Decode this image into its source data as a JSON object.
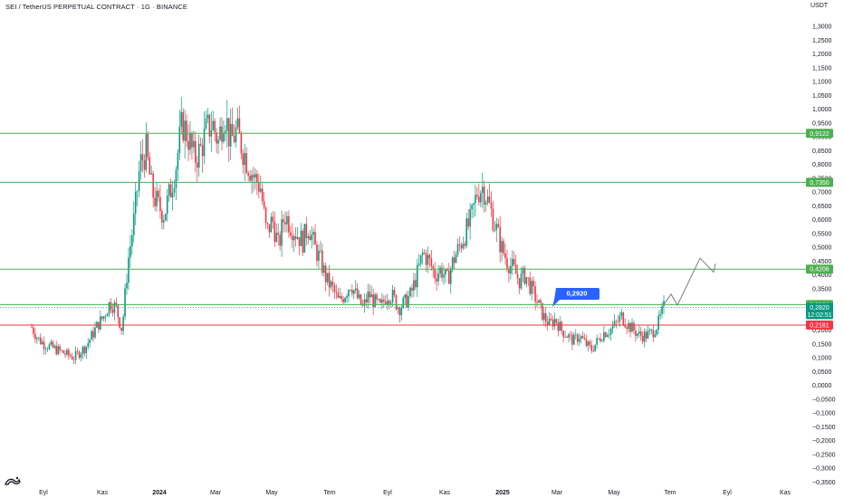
{
  "header": {
    "title": "SEI / TetherUS PERPETUAL CONTRACT · 1G · BINANCE",
    "currency": "USDT"
  },
  "chart_data": {
    "type": "candlestick",
    "title": "SEI / TetherUS PERPETUAL CONTRACT · 1G · BINANCE",
    "ylabel": "USDT",
    "ylim": [
      -0.35,
      1.35
    ],
    "y_ticks": [
      "1,3000",
      "1,2500",
      "1,2000",
      "1,1500",
      "1,1000",
      "1,0500",
      "1,0000",
      "0,9500",
      "0,9000",
      "0,8500",
      "0,8000",
      "0,7500",
      "0,7000",
      "0,6500",
      "0,6000",
      "0,5500",
      "0,5000",
      "0,4500",
      "0,4000",
      "0,3500",
      "0,3000",
      "0,2500",
      "0,2000",
      "0,1500",
      "0,1000",
      "0,0500",
      "0,0000",
      "−0,0500",
      "−0,1000",
      "−0,1500",
      "−0,2000",
      "−0,2500",
      "−0,3000",
      "−0,3500"
    ],
    "y_tick_values": [
      1.3,
      1.25,
      1.2,
      1.15,
      1.1,
      1.05,
      1.0,
      0.95,
      0.9,
      0.85,
      0.8,
      0.75,
      0.7,
      0.65,
      0.6,
      0.55,
      0.5,
      0.45,
      0.4,
      0.35,
      0.3,
      0.25,
      0.2,
      0.15,
      0.1,
      0.05,
      0.0,
      -0.05,
      -0.1,
      -0.15,
      -0.2,
      -0.25,
      -0.3,
      -0.35
    ],
    "x_ticks": [
      "Eyl",
      "Kas",
      "2024",
      "Mar",
      "May",
      "Tem",
      "Eyl",
      "Kas",
      "2025",
      "Mar",
      "May",
      "Tem",
      "Eyl",
      "Kas"
    ],
    "x_tick_bold": [
      false,
      false,
      true,
      false,
      false,
      false,
      false,
      false,
      true,
      false,
      false,
      false,
      false,
      false
    ],
    "horizontal_levels": [
      {
        "value": 0.9122,
        "label": "0,9122",
        "color": "#4caf50"
      },
      {
        "value": 0.735,
        "label": "0,7350",
        "color": "#4caf50"
      },
      {
        "value": 0.4206,
        "label": "0,4206",
        "color": "#4caf50"
      },
      {
        "value": 0.2921,
        "label": "0,2921",
        "color": "#4caf50"
      },
      {
        "value": 0.2181,
        "label": "0,2181",
        "color": "#f23645"
      }
    ],
    "current_price": {
      "value": 0.282,
      "label": "0,2820",
      "countdown": "12:02:51",
      "color": "#089981"
    },
    "callout": {
      "label": "0,2920",
      "color": "#2962ff"
    },
    "projection_path": [
      [
        0.2921
      ],
      [
        0.33
      ],
      [
        0.29
      ],
      [
        0.46
      ],
      [
        0.41
      ],
      [
        0.44
      ]
    ],
    "candles": {
      "up_color": "#089981",
      "down_color": "#f23645",
      "ohlc_key_points": [
        [
          0.21,
          0.17
        ],
        [
          0.15,
          0.14
        ],
        [
          0.13,
          0.12
        ],
        [
          0.11,
          0.1
        ],
        [
          0.12,
          0.14
        ],
        [
          0.18,
          0.22
        ],
        [
          0.25,
          0.3
        ],
        [
          0.28,
          0.2
        ],
        [
          0.45,
          0.6
        ],
        [
          0.8,
          0.85
        ],
        [
          0.7,
          0.65
        ],
        [
          0.62,
          0.7
        ],
        [
          0.8,
          0.95
        ],
        [
          0.9,
          0.82
        ],
        [
          0.85,
          0.92
        ],
        [
          0.95,
          0.88
        ],
        [
          1.0,
          0.88
        ],
        [
          0.92,
          0.86
        ],
        [
          0.8,
          0.75
        ],
        [
          0.72,
          0.55
        ],
        [
          0.6,
          0.5
        ],
        [
          0.62,
          0.58
        ],
        [
          0.55,
          0.52
        ],
        [
          0.58,
          0.5
        ],
        [
          0.45,
          0.38
        ],
        [
          0.35,
          0.3
        ],
        [
          0.33,
          0.37
        ],
        [
          0.32,
          0.28
        ],
        [
          0.33,
          0.3
        ],
        [
          0.28,
          0.33
        ],
        [
          0.32,
          0.28
        ],
        [
          0.3,
          0.33
        ],
        [
          0.4,
          0.48
        ],
        [
          0.45,
          0.4
        ],
        [
          0.42,
          0.38
        ],
        [
          0.45,
          0.5
        ],
        [
          0.55,
          0.6
        ],
        [
          0.7,
          0.72
        ],
        [
          0.65,
          0.58
        ],
        [
          0.5,
          0.45
        ],
        [
          0.42,
          0.38
        ],
        [
          0.4,
          0.35
        ],
        [
          0.3,
          0.25
        ],
        [
          0.22,
          0.24
        ],
        [
          0.2,
          0.18
        ],
        [
          0.16,
          0.18
        ],
        [
          0.15,
          0.13
        ],
        [
          0.16,
          0.19
        ],
        [
          0.2,
          0.22
        ],
        [
          0.25,
          0.22
        ],
        [
          0.2,
          0.18
        ],
        [
          0.18,
          0.19
        ],
        [
          0.22,
          0.28
        ]
      ]
    }
  }
}
